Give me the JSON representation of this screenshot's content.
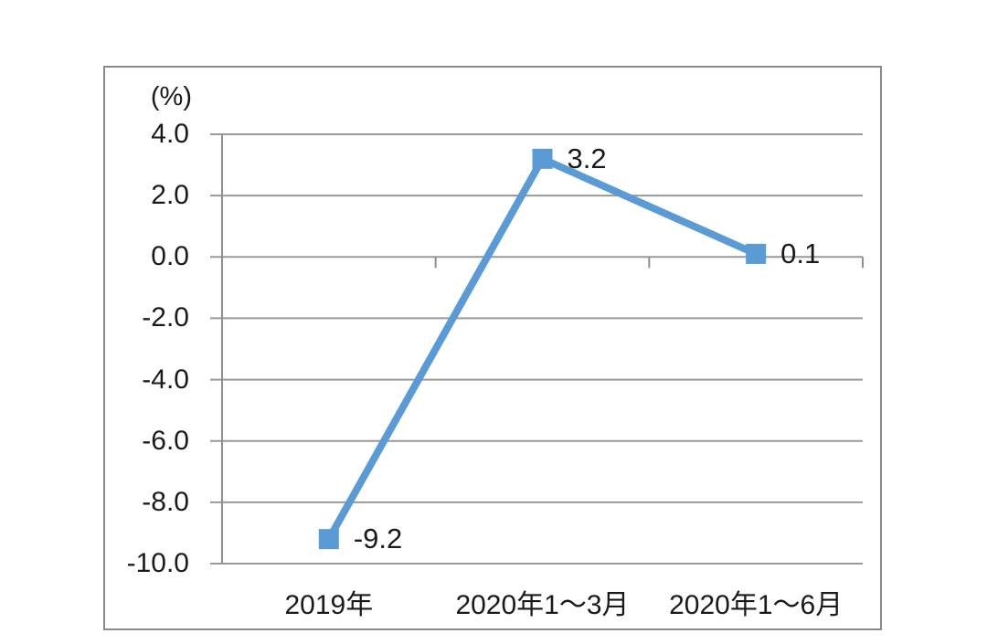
{
  "chart_data": {
    "type": "line",
    "title": "",
    "unit_label": "(%)",
    "categories": [
      "2019年",
      "2020年1～3月",
      "2020年1～6月"
    ],
    "series": [
      {
        "name": "series-1",
        "values": [
          -9.2,
          3.2,
          0.1
        ]
      }
    ],
    "data_labels": [
      "-9.2",
      "3.2",
      "0.1"
    ],
    "ylim": [
      -10,
      4
    ],
    "ytick_step": 2,
    "yticks": [
      4,
      2,
      0,
      -2,
      -4,
      -6,
      -8,
      -10
    ],
    "ytick_labels": [
      "4.0",
      "2.0",
      "0.0",
      "-2.0",
      "-4.0",
      "-6.0",
      "-8.0",
      "-10.0"
    ],
    "grid": true,
    "legend_position": "none",
    "colors": {
      "line": "#5B9BD5",
      "marker": "#5B9BD5",
      "grid": "#999999",
      "axis": "#8e8e8e",
      "frame_border": "#8a8a8a",
      "text": "#1a1a1a",
      "background": "#ffffff"
    }
  }
}
